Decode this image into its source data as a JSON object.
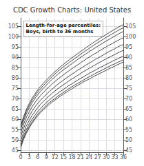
{
  "chart_data": {
    "type": "line",
    "title": "CDC Growth Charts: United States",
    "subtitle": "Length-for-age percentiles:\nBoys, birth to 36 months",
    "x": [
      0,
      1,
      2,
      3,
      4,
      5,
      6,
      7,
      8,
      9,
      10,
      11,
      12,
      13,
      14,
      15,
      16,
      17,
      18,
      19,
      20,
      21,
      22,
      23,
      24,
      25,
      26,
      27,
      28,
      29,
      30,
      31,
      32,
      33,
      34,
      35,
      36
    ],
    "xlim": [
      0,
      36
    ],
    "xticks": [
      0,
      3,
      6,
      9,
      12,
      15,
      18,
      21,
      24,
      27,
      30,
      33,
      36
    ],
    "ylim": [
      44,
      109
    ],
    "yticks": [
      45,
      50,
      55,
      60,
      65,
      70,
      75,
      80,
      85,
      90,
      95,
      100,
      105
    ],
    "y2lim": [
      44,
      109
    ],
    "y2ticks": [
      45,
      50,
      55,
      60,
      65,
      70,
      75,
      80,
      85,
      90,
      95,
      100,
      105
    ],
    "grid": true,
    "series": [
      {
        "color": "#444444",
        "values": [
          46.1,
          50.2,
          53.2,
          55.8,
          58.0,
          59.9,
          61.7,
          63.2,
          64.6,
          65.9,
          67.1,
          68.2,
          69.2,
          70.2,
          71.2,
          72.1,
          73.0,
          73.9,
          74.7,
          75.6,
          76.4,
          77.2,
          78.0,
          78.7,
          79.4,
          80.2,
          80.9,
          81.6,
          82.3,
          83.0,
          83.7,
          84.4,
          85.0,
          85.7,
          86.4,
          87.0,
          87.6
        ]
      },
      {
        "color": "#444444",
        "values": [
          46.8,
          50.8,
          53.9,
          56.5,
          58.7,
          60.6,
          62.4,
          63.9,
          65.4,
          66.7,
          67.9,
          69.0,
          70.0,
          71.1,
          72.0,
          73.0,
          73.9,
          74.8,
          75.7,
          76.5,
          77.3,
          78.1,
          78.9,
          79.7,
          80.5,
          81.2,
          82.0,
          82.7,
          83.4,
          84.1,
          84.8,
          85.5,
          86.2,
          86.8,
          87.5,
          88.1,
          88.7
        ]
      },
      {
        "color": "#444444",
        "values": [
          47.9,
          51.8,
          55.0,
          57.7,
          59.9,
          61.9,
          63.7,
          65.2,
          66.7,
          68.0,
          69.2,
          70.4,
          71.5,
          72.5,
          73.5,
          74.4,
          75.4,
          76.3,
          77.1,
          78.0,
          78.9,
          79.7,
          80.5,
          81.3,
          82.1,
          82.9,
          83.6,
          84.4,
          85.1,
          85.8,
          86.5,
          87.2,
          87.9,
          88.6,
          89.2,
          89.9,
          90.5
        ]
      },
      {
        "color": "#444444",
        "values": [
          49.5,
          53.4,
          56.8,
          59.4,
          61.8,
          63.7,
          65.6,
          67.2,
          68.6,
          70.0,
          71.3,
          72.5,
          73.6,
          74.7,
          75.7,
          76.7,
          77.6,
          78.6,
          79.5,
          80.3,
          81.2,
          82.1,
          83.0,
          83.8,
          84.6,
          85.4,
          86.2,
          87.0,
          87.7,
          88.5,
          89.2,
          89.9,
          90.6,
          91.3,
          92.0,
          92.7,
          93.3
        ]
      },
      {
        "color": "#444444",
        "values": [
          51.5,
          55.4,
          58.8,
          61.4,
          63.9,
          65.9,
          67.7,
          69.2,
          70.6,
          72.0,
          73.3,
          74.5,
          75.7,
          76.9,
          77.9,
          78.9,
          79.9,
          80.9,
          81.8,
          82.7,
          83.7,
          84.5,
          85.4,
          86.3,
          87.1,
          87.9,
          88.8,
          89.5,
          90.3,
          91.1,
          91.9,
          92.7,
          93.4,
          94.1,
          94.9,
          95.6,
          96.1
        ]
      },
      {
        "color": "#444444",
        "values": [
          53.4,
          57.4,
          60.9,
          63.5,
          66.0,
          68.0,
          69.9,
          71.5,
          73.0,
          74.4,
          75.7,
          77.0,
          78.2,
          79.3,
          80.4,
          81.5,
          82.5,
          83.5,
          84.5,
          85.4,
          86.3,
          87.3,
          88.2,
          89.1,
          90.0,
          90.9,
          91.7,
          92.5,
          93.4,
          94.2,
          95.0,
          95.8,
          96.5,
          97.3,
          98.0,
          98.8,
          99.4
        ]
      },
      {
        "color": "#444444",
        "values": [
          55.1,
          59.1,
          62.7,
          65.4,
          67.9,
          70.0,
          71.9,
          73.5,
          75.1,
          76.5,
          77.9,
          79.2,
          80.5,
          81.7,
          82.8,
          83.9,
          84.9,
          85.9,
          86.9,
          87.9,
          88.9,
          89.9,
          90.8,
          91.7,
          92.7,
          93.5,
          94.4,
          95.3,
          96.1,
          97.0,
          97.8,
          98.6,
          99.4,
          100.2,
          101.0,
          101.8,
          102.4
        ]
      },
      {
        "color": "#444444",
        "values": [
          56.2,
          60.2,
          63.8,
          66.6,
          69.1,
          71.2,
          73.2,
          74.8,
          76.4,
          77.8,
          79.2,
          80.6,
          81.9,
          83.1,
          84.2,
          85.3,
          86.4,
          87.4,
          88.4,
          89.4,
          90.4,
          91.4,
          92.4,
          93.3,
          94.2,
          95.2,
          96.1,
          97.0,
          97.9,
          98.7,
          99.6,
          100.4,
          101.2,
          102.0,
          102.8,
          103.6,
          104.2
        ]
      },
      {
        "color": "#444444",
        "values": [
          57.0,
          61.1,
          64.7,
          67.6,
          70.1,
          72.2,
          74.2,
          75.9,
          77.5,
          78.9,
          80.3,
          81.7,
          83.0,
          84.2,
          85.4,
          86.5,
          87.6,
          88.7,
          89.7,
          90.7,
          91.7,
          92.7,
          93.7,
          94.7,
          95.6,
          96.6,
          97.5,
          98.4,
          99.3,
          100.1,
          101.0,
          101.8,
          102.7,
          103.5,
          104.3,
          105.1,
          105.7
        ]
      }
    ]
  }
}
